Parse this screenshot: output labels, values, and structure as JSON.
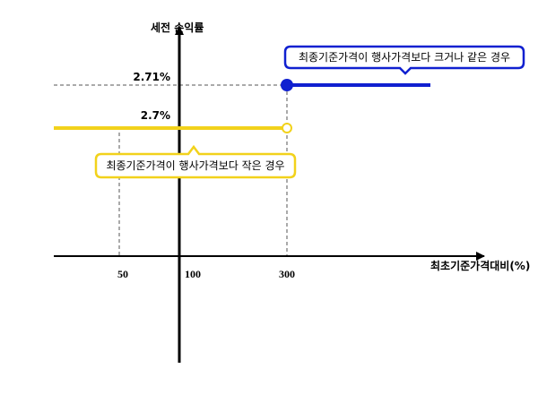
{
  "chart_data": {
    "type": "line",
    "ylabel": "세전 손익률",
    "xlabel": "최초기준가격대비(%)",
    "x_ticks": [
      "50",
      "100",
      "300"
    ],
    "y_ticks": [
      "2.71%",
      "2.7%"
    ],
    "series": [
      {
        "points": [
          [
            300,
            2.71
          ],
          [
            410,
            2.71
          ]
        ],
        "color": "#1020d0",
        "marker": "filled-circle-at-start",
        "annotation": "최종기준가격이 행사가격보다 크거나 같은 경우"
      },
      {
        "points": [
          [
            0,
            2.7
          ],
          [
            300,
            2.7
          ]
        ],
        "color": "#f2d21b",
        "marker": "open-circle-at-end",
        "annotation": "최종기준가격이 행사가격보다 작은 경우"
      }
    ],
    "reference_lines": [
      {
        "axis": "y",
        "value": 2.71,
        "style": "dashed"
      },
      {
        "axis": "x",
        "value": 50,
        "style": "dashed"
      },
      {
        "axis": "x",
        "value": 300,
        "style": "dashed"
      }
    ],
    "grid": false,
    "legend": "none"
  }
}
